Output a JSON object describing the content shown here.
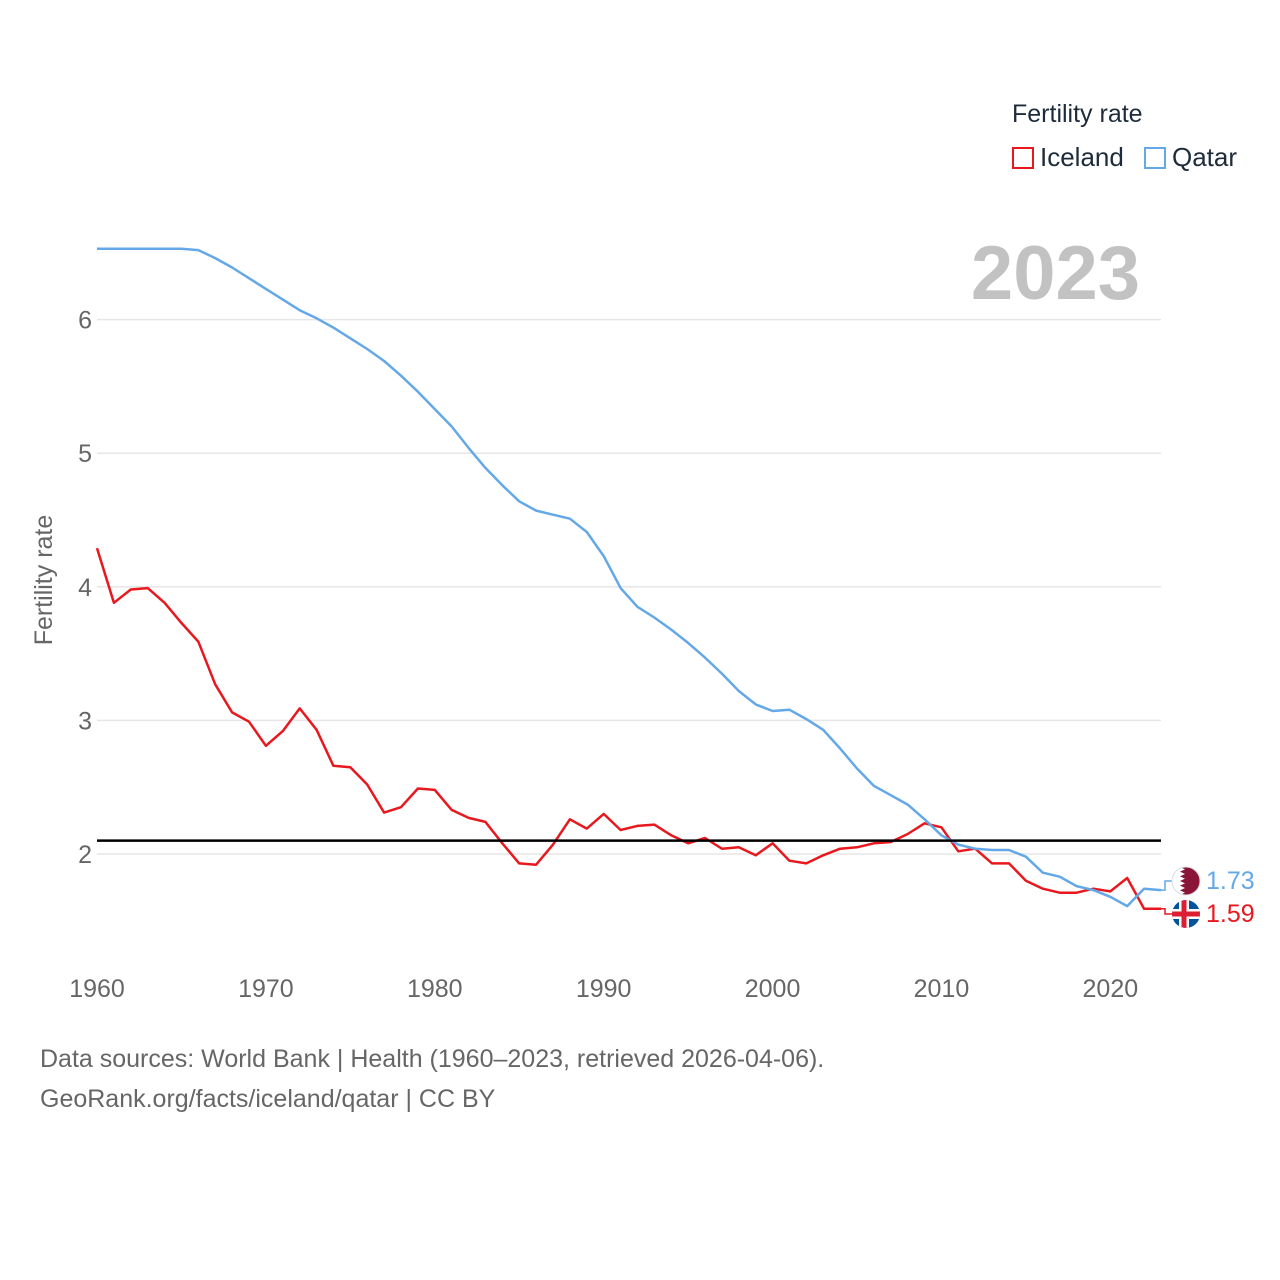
{
  "legend": {
    "title": "Fertility rate",
    "items": [
      {
        "label": "Iceland",
        "color": "#e8191e"
      },
      {
        "label": "Qatar",
        "color": "#64a8e8"
      }
    ]
  },
  "year_label": "2023",
  "end_labels": {
    "qatar": "1.73",
    "iceland": "1.59"
  },
  "footer": {
    "line1": "Data sources: World Bank | Health (1960–2023, retrieved 2026-04-06).",
    "line2": "GeoRank.org/facts/iceland/qatar | CC BY"
  },
  "colors": {
    "iceland": "#e8191e",
    "qatar": "#64a8e8",
    "reference": "#000000",
    "grid": "#e6e6e6",
    "tick": "#666666",
    "year": "#c2c2c2"
  },
  "icons": {
    "qatar_flag": "qatar-flag-icon",
    "iceland_flag": "iceland-flag-icon"
  },
  "chart_data": {
    "type": "line",
    "title": "",
    "xlabel": "",
    "ylabel": "Fertility rate",
    "xlim": [
      1960,
      2023
    ],
    "ylim": [
      1.35,
      6.6
    ],
    "xticks": [
      1960,
      1970,
      1980,
      1990,
      2000,
      2010,
      2020
    ],
    "yticks": [
      2,
      3,
      4,
      5,
      6
    ],
    "reference_line": 2.1,
    "grid": true,
    "legend_position": "top-right",
    "x": [
      1960,
      1961,
      1962,
      1963,
      1964,
      1965,
      1966,
      1967,
      1968,
      1969,
      1970,
      1971,
      1972,
      1973,
      1974,
      1975,
      1976,
      1977,
      1978,
      1979,
      1980,
      1981,
      1982,
      1983,
      1984,
      1985,
      1986,
      1987,
      1988,
      1989,
      1990,
      1991,
      1992,
      1993,
      1994,
      1995,
      1996,
      1997,
      1998,
      1999,
      2000,
      2001,
      2002,
      2003,
      2004,
      2005,
      2006,
      2007,
      2008,
      2009,
      2010,
      2011,
      2012,
      2013,
      2014,
      2015,
      2016,
      2017,
      2018,
      2019,
      2020,
      2021,
      2022,
      2023
    ],
    "series": [
      {
        "name": "Iceland",
        "color": "#e8191e",
        "values": [
          4.29,
          3.88,
          3.98,
          3.99,
          3.88,
          3.73,
          3.59,
          3.27,
          3.06,
          2.99,
          2.81,
          2.92,
          3.09,
          2.93,
          2.66,
          2.65,
          2.52,
          2.31,
          2.35,
          2.49,
          2.48,
          2.33,
          2.27,
          2.24,
          2.08,
          1.93,
          1.92,
          2.07,
          2.26,
          2.19,
          2.3,
          2.18,
          2.21,
          2.22,
          2.14,
          2.08,
          2.12,
          2.04,
          2.05,
          1.99,
          2.08,
          1.95,
          1.93,
          1.99,
          2.04,
          2.05,
          2.08,
          2.09,
          2.15,
          2.23,
          2.2,
          2.02,
          2.04,
          1.93,
          1.93,
          1.8,
          1.74,
          1.71,
          1.71,
          1.74,
          1.72,
          1.82,
          1.59,
          1.59
        ]
      },
      {
        "name": "Qatar",
        "color": "#64a8e8",
        "values": [
          6.53,
          6.53,
          6.53,
          6.53,
          6.53,
          6.53,
          6.52,
          6.46,
          6.39,
          6.31,
          6.23,
          6.15,
          6.07,
          6.01,
          5.94,
          5.86,
          5.78,
          5.69,
          5.58,
          5.46,
          5.33,
          5.2,
          5.04,
          4.89,
          4.76,
          4.64,
          4.57,
          4.54,
          4.51,
          4.41,
          4.23,
          3.99,
          3.85,
          3.77,
          3.68,
          3.58,
          3.47,
          3.35,
          3.22,
          3.12,
          3.07,
          3.08,
          3.01,
          2.93,
          2.79,
          2.64,
          2.51,
          2.44,
          2.37,
          2.26,
          2.14,
          2.07,
          2.04,
          2.03,
          2.03,
          1.98,
          1.86,
          1.83,
          1.76,
          1.73,
          1.68,
          1.61,
          1.74,
          1.73
        ]
      }
    ]
  }
}
